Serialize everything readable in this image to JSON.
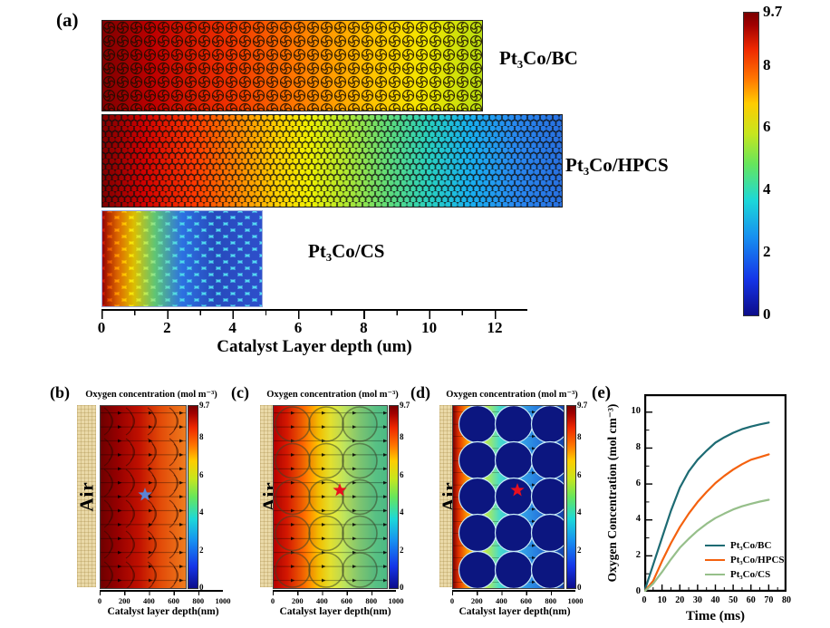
{
  "panel_a": {
    "label": "(a)",
    "strips": [
      {
        "name": "Pt₃Co/BC"
      },
      {
        "name": "Pt₃Co/HPCS"
      },
      {
        "name": "Pt₃Co/CS"
      }
    ],
    "axis": {
      "title": "Catalyst Layer depth (um)",
      "ticks": [
        "0",
        "2",
        "4",
        "6",
        "8",
        "10",
        "12"
      ]
    },
    "colorbar": {
      "max": 9.7,
      "ticks": [
        {
          "v": 9.7,
          "label": "9.7"
        },
        {
          "v": 8,
          "label": "8"
        },
        {
          "v": 6,
          "label": "6"
        },
        {
          "v": 4,
          "label": "4"
        },
        {
          "v": 2,
          "label": "2"
        },
        {
          "v": 0,
          "label": "0"
        }
      ]
    }
  },
  "panels_bcd": [
    {
      "label": "(b)",
      "title": "Oxygen concentration (mol m⁻³)",
      "air_label": "Air",
      "axis_title": "Catalyst layer depth(nm)",
      "axis_ticks": [
        "0",
        "200",
        "400",
        "600",
        "800",
        "1000"
      ],
      "star_color": "#5b85d6"
    },
    {
      "label": "(c)",
      "title": "Oxygen concentration (mol m⁻³)",
      "air_label": "Air",
      "axis_title": "Catalyst layer depth(nm)",
      "axis_ticks": [
        "0",
        "200",
        "400",
        "600",
        "800",
        "1000"
      ],
      "star_color": "#ea0f1e"
    },
    {
      "label": "(d)",
      "title": "Oxygen concentration (mol m⁻³)",
      "air_label": "Air",
      "axis_title": "Catalyst layer depth(nm)",
      "axis_ticks": [
        "0",
        "200",
        "400",
        "600",
        "800",
        "1000"
      ],
      "star_color": "#ea0f1e"
    }
  ],
  "small_colorbar": {
    "max": 9.7,
    "ticks": [
      {
        "v": 9.7,
        "label": "9.7"
      },
      {
        "v": 8,
        "label": "8"
      },
      {
        "v": 6,
        "label": "6"
      },
      {
        "v": 4,
        "label": "4"
      },
      {
        "v": 2,
        "label": "2"
      },
      {
        "v": 0,
        "label": "0"
      }
    ]
  },
  "panel_e": {
    "label": "(e)"
  },
  "chart_data": {
    "type": "line",
    "title": "",
    "xlabel": "Time (ms)",
    "ylabel": "Oxygen Concentration (mol cm⁻³)",
    "xlim": [
      0,
      80
    ],
    "ylim": [
      0,
      11
    ],
    "xticks": [
      0,
      10,
      20,
      30,
      40,
      50,
      60,
      70,
      80
    ],
    "yticks": [
      0,
      2,
      4,
      6,
      8,
      10
    ],
    "grid": false,
    "legend_position": "lower right",
    "x": [
      0,
      5,
      10,
      15,
      20,
      25,
      30,
      35,
      40,
      45,
      50,
      55,
      60,
      65,
      70
    ],
    "series": [
      {
        "name": "Pt₃Co/BC",
        "color": "#1d6b73",
        "values": [
          0,
          1.5,
          3.0,
          4.5,
          5.8,
          6.7,
          7.35,
          7.85,
          8.3,
          8.6,
          8.85,
          9.05,
          9.2,
          9.32,
          9.42
        ]
      },
      {
        "name": "Pt₃Co/HPCS",
        "color": "#f4610e",
        "values": [
          0,
          0.6,
          1.7,
          2.7,
          3.6,
          4.35,
          5.0,
          5.55,
          6.05,
          6.45,
          6.8,
          7.1,
          7.35,
          7.5,
          7.65
        ]
      },
      {
        "name": "Pt₃Co/CS",
        "color": "#96bf8a",
        "values": [
          0,
          0.45,
          1.1,
          1.8,
          2.45,
          2.95,
          3.4,
          3.78,
          4.1,
          4.35,
          4.58,
          4.76,
          4.9,
          5.02,
          5.12
        ]
      }
    ]
  }
}
